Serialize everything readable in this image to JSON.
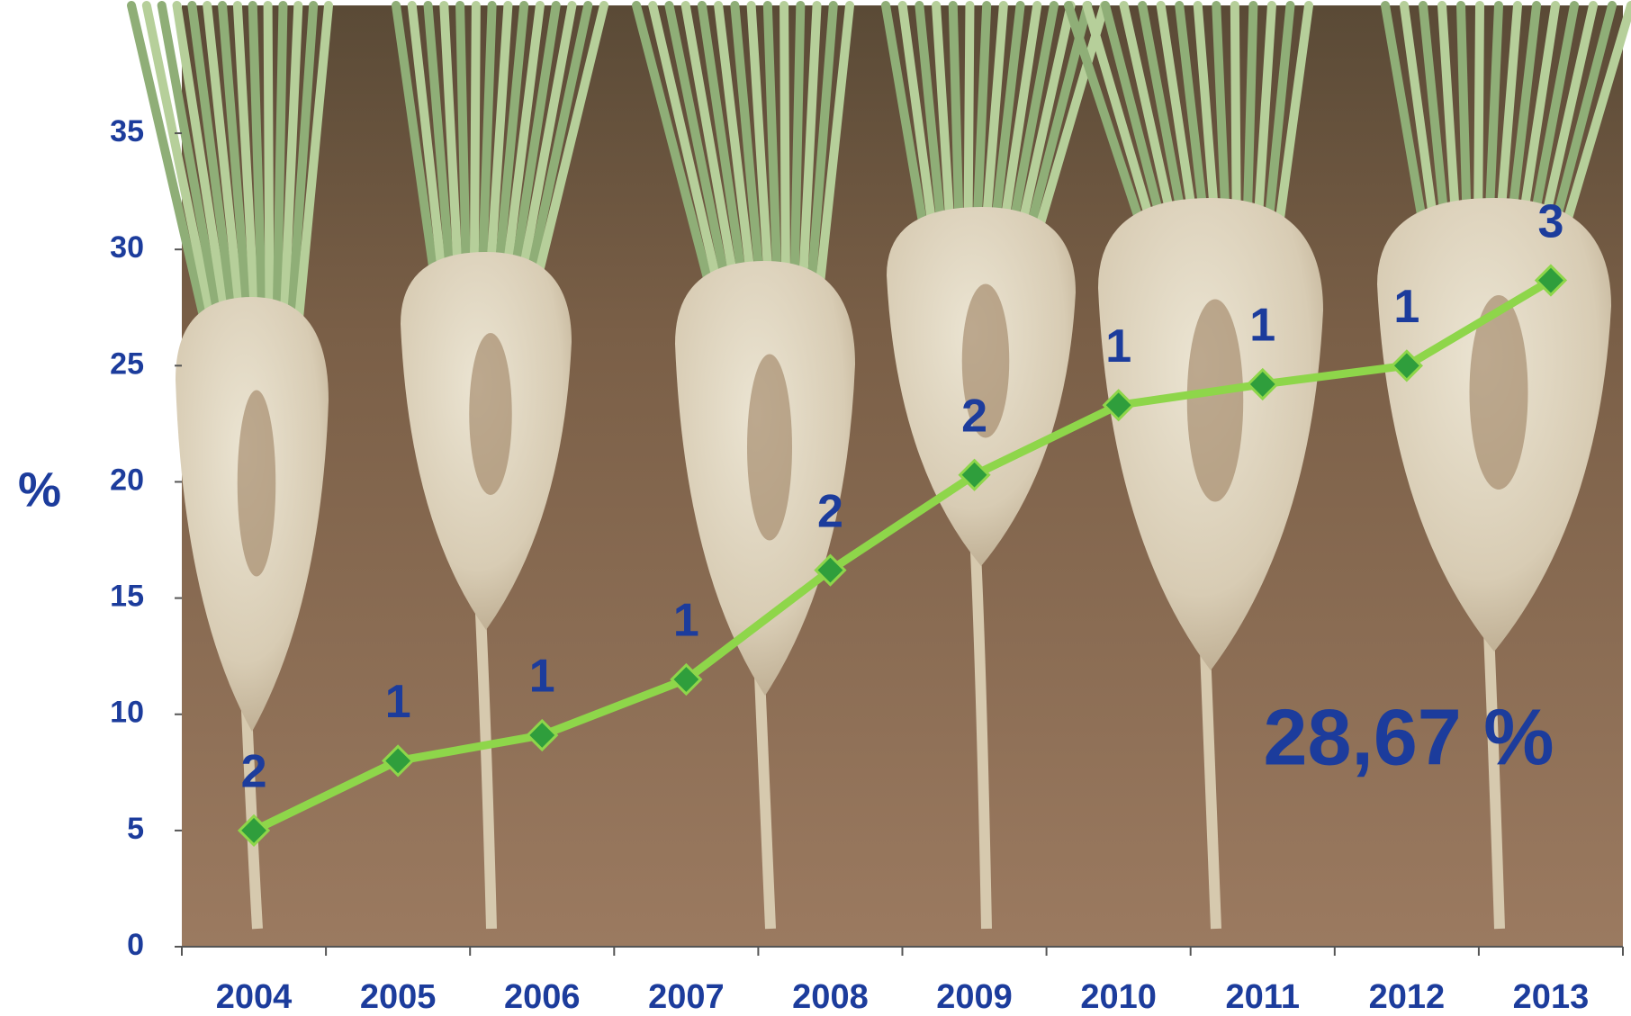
{
  "chart_data": {
    "type": "line",
    "y_label": "%",
    "categories": [
      "2004",
      "2005",
      "2006",
      "2007",
      "2008",
      "2009",
      "2010",
      "2011",
      "2012",
      "2013"
    ],
    "series": [
      {
        "color": "#8ed64a",
        "marker_color": "#2f9e3c",
        "values": [
          5.0,
          8.0,
          9.1,
          11.5,
          16.2,
          20.3,
          23.3,
          24.2,
          25.0,
          28.67
        ],
        "point_labels": [
          "2",
          "1",
          "1",
          "1",
          "2",
          "2",
          "1",
          "1",
          "1",
          "3"
        ]
      }
    ],
    "annotation": "28,67 %",
    "ylim": [
      0,
      40.5
    ],
    "yticks": [
      0,
      5,
      10,
      15,
      20,
      25,
      30,
      35
    ]
  }
}
